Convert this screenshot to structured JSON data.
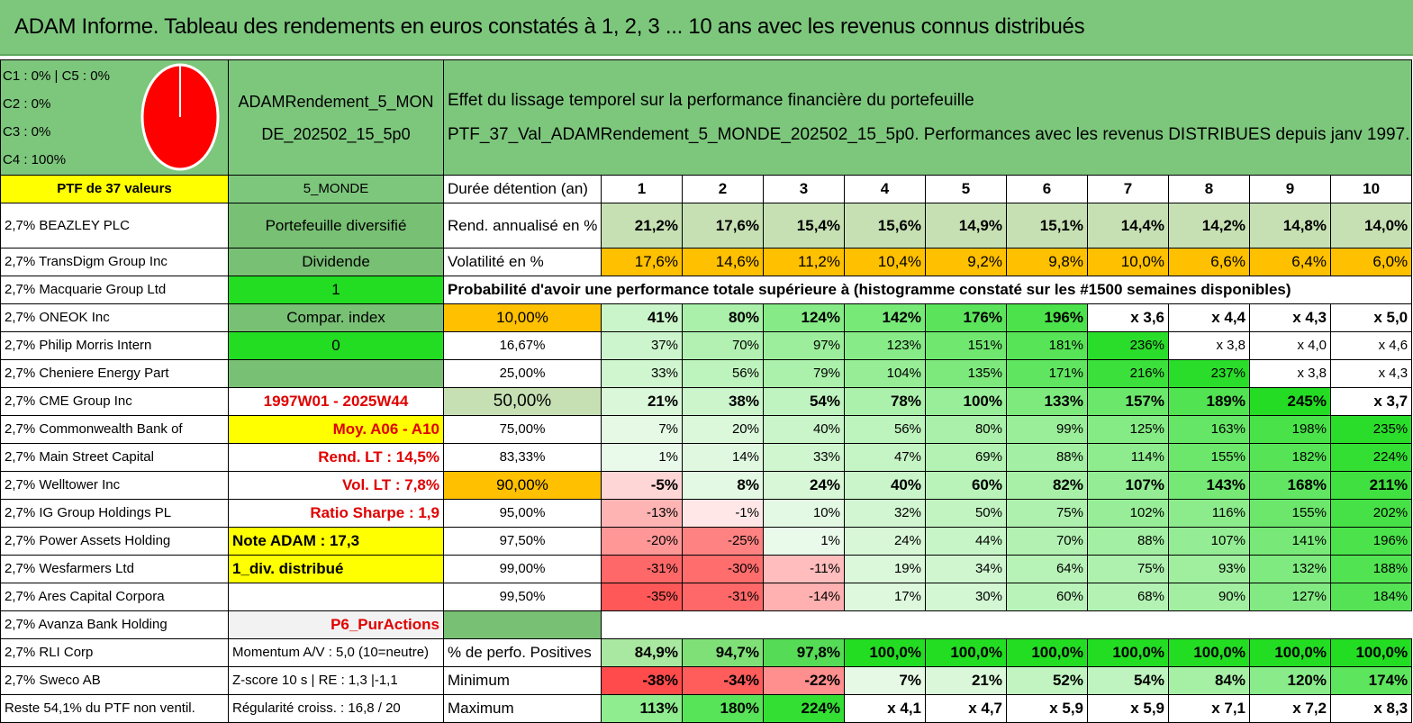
{
  "title": "ADAM Informe. Tableau des rendements en euros constatés à 1, 2, 3 ... 10 ans avec les revenus connus distribués",
  "legend": [
    "C1 : 0% | C5 : 0%",
    "C2 : 0%",
    "C3 : 0%",
    "C4 : 100%"
  ],
  "portfolio_code_line1": "ADAMRendement_5_MON",
  "portfolio_code_line2": "DE_202502_15_5p0",
  "description_line1": "Effet du lissage temporel sur la performance financière du portefeuille",
  "description_line2": "PTF_37_Val_ADAMRendement_5_MONDE_202502_15_5p0. Performances avec les revenus DISTRIBUES depuis janv 1997.",
  "ptf_label": "PTF de 37 valeurs",
  "zone_label": "5_MONDE",
  "duration_label": "Durée détention (an)",
  "years": [
    "1",
    "2",
    "3",
    "4",
    "5",
    "6",
    "7",
    "8",
    "9",
    "10"
  ],
  "holdings": [
    "2,7% BEAZLEY PLC",
    "2,7% TransDigm Group Inc",
    "2,7% Macquarie Group Ltd",
    "2,7% ONEOK Inc",
    "2,7% Philip Morris Intern",
    "2,7% Cheniere Energy Part",
    "2,7% CME Group Inc",
    "2,7% Commonwealth Bank of",
    "2,7% Main Street Capital",
    "2,7% Welltower Inc",
    "2,7% IG Group Holdings PL",
    "2,7% Power Assets Holding",
    "2,7% Wesfarmers Ltd",
    "2,7% Ares Capital Corpora",
    "2,7% Avanza Bank Holding",
    "2,7% RLI Corp",
    "2,7% Sweco AB",
    "Reste 54,1% du PTF non ventil."
  ],
  "info": [
    "Portefeuille diversifié",
    "Dividende",
    "1",
    "Compar. index",
    "0",
    "",
    "1997W01 - 2025W44",
    "Moy. A06 - A10",
    "Rend. LT : 14,5%",
    "Vol. LT : 7,8%",
    "Ratio Sharpe : 1,9",
    "Note ADAM : 17,3",
    "1_div. distribué",
    "",
    "P6_PurActions",
    "Momentum A/V : 5,0 (10=neutre)",
    "Z-score 10 s | RE : 1,3 |-1,1",
    "Régularité croiss. : 16,8 / 20"
  ],
  "rend_label": "Rend. annualisé en %",
  "rend_values": [
    "21,2%",
    "17,6%",
    "15,4%",
    "15,6%",
    "14,9%",
    "15,1%",
    "14,4%",
    "14,2%",
    "14,8%",
    "14,0%"
  ],
  "vol_label": "Volatilité en %",
  "vol_values": [
    "17,6%",
    "14,6%",
    "11,2%",
    "10,4%",
    "9,2%",
    "9,8%",
    "10,0%",
    "6,6%",
    "6,4%",
    "6,0%"
  ],
  "prob_title": "Probabilité d'avoir une performance totale supérieure à (histogramme constaté sur les #1500 semaines disponibles)",
  "prob_rows": [
    {
      "p": "10,00%",
      "v": [
        "41%",
        "80%",
        "124%",
        "142%",
        "176%",
        "196%",
        "x 3,6",
        "x 4,4",
        "x 4,3",
        "x 5,0"
      ]
    },
    {
      "p": "16,67%",
      "v": [
        "37%",
        "70%",
        "97%",
        "123%",
        "151%",
        "181%",
        "236%",
        "x 3,8",
        "x 4,0",
        "x 4,6"
      ]
    },
    {
      "p": "25,00%",
      "v": [
        "33%",
        "56%",
        "79%",
        "104%",
        "135%",
        "171%",
        "216%",
        "237%",
        "x 3,8",
        "x 4,3"
      ]
    },
    {
      "p": "50,00%",
      "v": [
        "21%",
        "38%",
        "54%",
        "78%",
        "100%",
        "133%",
        "157%",
        "189%",
        "245%",
        "x 3,7"
      ]
    },
    {
      "p": "75,00%",
      "v": [
        "7%",
        "20%",
        "40%",
        "56%",
        "80%",
        "99%",
        "125%",
        "163%",
        "198%",
        "235%"
      ]
    },
    {
      "p": "83,33%",
      "v": [
        "1%",
        "14%",
        "33%",
        "47%",
        "69%",
        "88%",
        "114%",
        "155%",
        "182%",
        "224%"
      ]
    },
    {
      "p": "90,00%",
      "v": [
        "-5%",
        "8%",
        "24%",
        "40%",
        "60%",
        "82%",
        "107%",
        "143%",
        "168%",
        "211%"
      ]
    },
    {
      "p": "95,00%",
      "v": [
        "-13%",
        "-1%",
        "10%",
        "32%",
        "50%",
        "75%",
        "102%",
        "116%",
        "155%",
        "202%"
      ]
    },
    {
      "p": "97,50%",
      "v": [
        "-20%",
        "-25%",
        "1%",
        "24%",
        "44%",
        "70%",
        "88%",
        "107%",
        "141%",
        "196%"
      ]
    },
    {
      "p": "99,00%",
      "v": [
        "-31%",
        "-30%",
        "-11%",
        "19%",
        "34%",
        "64%",
        "75%",
        "93%",
        "132%",
        "188%"
      ]
    },
    {
      "p": "99,50%",
      "v": [
        "-35%",
        "-31%",
        "-14%",
        "17%",
        "30%",
        "60%",
        "68%",
        "90%",
        "127%",
        "184%"
      ]
    }
  ],
  "pos_label": "% de perfo. Positives",
  "pos_values": [
    "84,9%",
    "94,7%",
    "97,8%",
    "100,0%",
    "100,0%",
    "100,0%",
    "100,0%",
    "100,0%",
    "100,0%",
    "100,0%"
  ],
  "min_label": "Minimum",
  "min_values": [
    "-38%",
    "-34%",
    "-22%",
    "7%",
    "21%",
    "52%",
    "54%",
    "84%",
    "120%",
    "174%"
  ],
  "max_label": "Maximum",
  "max_values": [
    "113%",
    "180%",
    "224%",
    "x 4,1",
    "x 4,7",
    "x 5,9",
    "x 5,9",
    "x 7,1",
    "x 7,2",
    "x 8,3"
  ],
  "colors": {
    "header_green": "#7dc77d",
    "yellow": "#ffff00",
    "orange": "#ffc000",
    "bright_green": "#22dd22",
    "pie_fill": "#ff0000"
  }
}
